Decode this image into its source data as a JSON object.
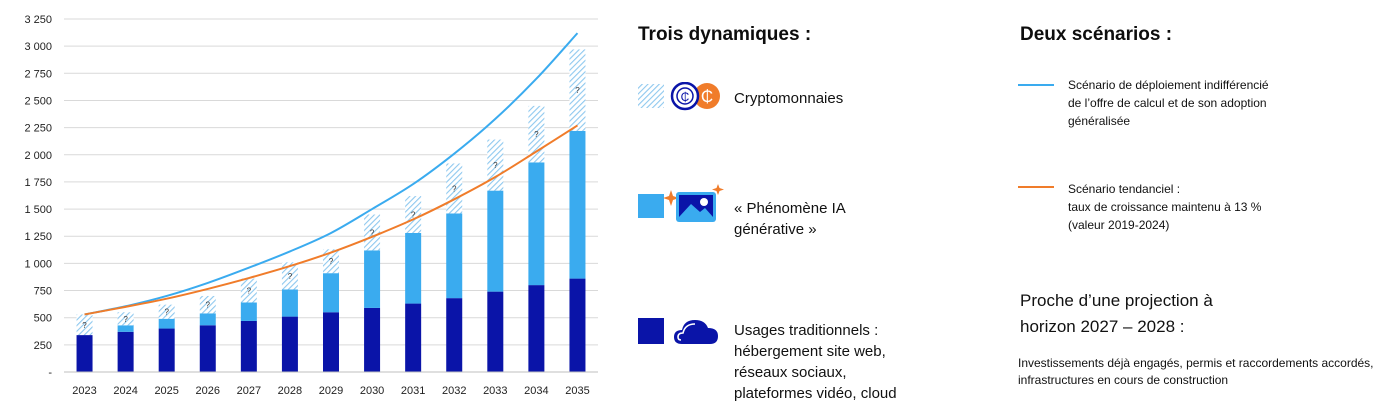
{
  "chart_data": {
    "type": "bar",
    "categories": [
      "2023",
      "2024",
      "2025",
      "2026",
      "2027",
      "2028",
      "2029",
      "2030",
      "2031",
      "2032",
      "2033",
      "2034",
      "2035"
    ],
    "series": [
      {
        "name": "Usages traditionnels",
        "color": "#0a14a8",
        "values": [
          340,
          370,
          400,
          430,
          470,
          510,
          550,
          590,
          630,
          680,
          740,
          800,
          860
        ]
      },
      {
        "name": "« Phénomène IA générative »",
        "color": "#3aabef",
        "values": [
          0,
          60,
          90,
          110,
          170,
          250,
          360,
          530,
          650,
          780,
          930,
          1130,
          1360
        ]
      },
      {
        "name": "Cryptomonnaies",
        "color": "#b9dcf4",
        "pattern": "hatch",
        "values": [
          190,
          120,
          130,
          160,
          220,
          250,
          220,
          330,
          340,
          460,
          470,
          520,
          750
        ]
      }
    ],
    "lines": [
      {
        "name": "Scénario de déploiement indifférencié de l’offre de calcul et de son adoption généralisée",
        "color": "#3aabef",
        "values": [
          530,
          605,
          700,
          820,
          960,
          1110,
          1280,
          1500,
          1730,
          2010,
          2330,
          2700,
          3120
        ]
      },
      {
        "name": "Scénario tendanciel : taux de croissance maintenu à 13 %",
        "color": "#f07c2a",
        "values": [
          530,
          600,
          675,
          765,
          865,
          975,
          1100,
          1245,
          1405,
          1590,
          1795,
          2030,
          2270
        ]
      }
    ],
    "ylim": [
      0,
      3250
    ],
    "yticks": [
      0,
      250,
      500,
      750,
      1000,
      1250,
      1500,
      1750,
      2000,
      2250,
      2500,
      2750,
      3000,
      3250
    ],
    "ytick_labels": [
      "-",
      "250",
      "500",
      "750",
      "1 000",
      "1 250",
      "1 500",
      "1 750",
      "2 000",
      "2 250",
      "2 500",
      "2 750",
      "3 000",
      "3 250"
    ],
    "grid": true,
    "question_mark": "?"
  },
  "dynamiques": {
    "title": "Trois dynamiques :",
    "crypto_label": "Cryptomonnaies",
    "ia_line1": "« Phénomène IA",
    "ia_line2": "générative »",
    "trad_line1": "Usages traditionnels :",
    "trad_line2": "hébergement site web,",
    "trad_line3": "réseaux sociaux,",
    "trad_line4": "plateformes vidéo, cloud",
    "icons": [
      "hatch-swatch-icon",
      "crypto-coins-icon",
      "light-blue-swatch-icon",
      "ai-image-icon",
      "dark-blue-swatch-icon",
      "cloud-icon"
    ]
  },
  "scenarios": {
    "title": "Deux scénarios :",
    "blue_line1": "Scénario de déploiement indifférencié",
    "blue_line2": "de l’offre de calcul et de son adoption",
    "blue_line3": "généralisée",
    "orange_line1": "Scénario tendanciel :",
    "orange_line2": "taux de croissance maintenu à 13 %",
    "orange_line3": "(valeur 2019-2024)",
    "blue_color": "#3aabef",
    "orange_color": "#f07c2a"
  },
  "proche": {
    "title_line1": "Proche d’une projection à",
    "title_line2": "horizon 2027 – 2028 :",
    "text": "Investissements déjà engagés, permis et raccordements accordés, infrastructures en cours de construction"
  }
}
